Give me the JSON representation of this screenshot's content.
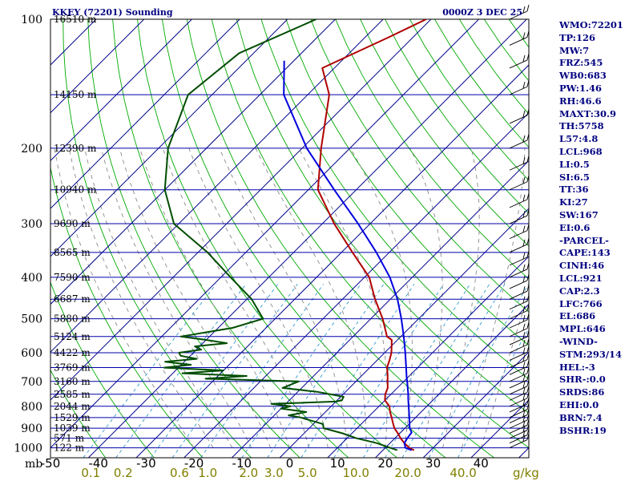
{
  "title": "KKEY (72201) Sounding",
  "datetime": "0000Z  3 DEC 25",
  "units": {
    "pressure": "mb",
    "mixing_ratio": "g/kg"
  },
  "indices": [
    "WMO:72201",
    "TP:126",
    "MW:7",
    "FRZ:545",
    "WB0:683",
    "PW:1.46",
    "RH:46.6",
    "MAXT:30.9",
    "TH:5758",
    "L57:4.8",
    "LCL:968",
    "LI:0.5",
    "SI:6.5",
    "TT:36",
    "KI:27",
    "SW:167",
    "EI:0.6",
    "-PARCEL-",
    "CAPE:143",
    "CINH:46",
    "LCL:921",
    "CAP:2.3",
    "LFC:766",
    "EL:686",
    "MPL:646",
    "-WIND-",
    "STM:293/14",
    "HEL:-3",
    "SHR-:0.0",
    "SRDS:86",
    "EHI:0.0",
    "BRN:7.4",
    "BSHR:19"
  ],
  "colors": {
    "isobar": "#0000aa",
    "isotherm": "#00008b",
    "dry_adiabat": "#00aa00",
    "moist_adiabat": "#8a8a8a",
    "mixing_ratio": "#3399cc",
    "temperature": "#b00000",
    "dewpoint": "#004d00",
    "parcel": "#0000dd",
    "text": "#000080"
  },
  "chart_data": {
    "type": "line",
    "title": "KKEY (72201) Sounding",
    "subtitle": "0000Z  3 DEC 25",
    "x_ticks": [
      -50,
      -40,
      -30,
      -20,
      -10,
      0,
      10,
      20,
      30,
      40
    ],
    "x_tick_labels": [
      "-50",
      "-40",
      "-30",
      "-20",
      "-10",
      "0",
      "10",
      "20",
      "30",
      "40"
    ],
    "x_range": [
      -50,
      50
    ],
    "y_range_mb": [
      1000,
      100
    ],
    "y_log_scale": true,
    "pressure_ticks": [
      100,
      200,
      300,
      400,
      500,
      600,
      700,
      800,
      900,
      1000
    ],
    "height_labels": [
      {
        "p": 100,
        "label": "16510 m"
      },
      {
        "p": 150,
        "label": "14150 m"
      },
      {
        "p": 200,
        "label": "12390 m"
      },
      {
        "p": 250,
        "label": "10940 m"
      },
      {
        "p": 300,
        "label": "9690 m"
      },
      {
        "p": 350,
        "label": "8565 m"
      },
      {
        "p": 400,
        "label": "7590 m"
      },
      {
        "p": 450,
        "label": "6687 m"
      },
      {
        "p": 500,
        "label": "5880 m"
      },
      {
        "p": 550,
        "label": "5124 m"
      },
      {
        "p": 600,
        "label": "4422 m"
      },
      {
        "p": 650,
        "label": "3769 m"
      },
      {
        "p": 700,
        "label": "3160 m"
      },
      {
        "p": 750,
        "label": "2585 m"
      },
      {
        "p": 800,
        "label": "2044 m"
      },
      {
        "p": 850,
        "label": "1529 m"
      },
      {
        "p": 900,
        "label": "1039 m"
      },
      {
        "p": 950,
        "label": "571 m"
      },
      {
        "p": 1000,
        "label": "122 m"
      }
    ],
    "mixing_ratio_labels": [
      {
        "w": 0.1,
        "label": "0.1"
      },
      {
        "w": 0.2,
        "label": "0.2"
      },
      {
        "w": 0.6,
        "label": "0.6"
      },
      {
        "w": 1.0,
        "label": "1.0"
      },
      {
        "w": 2.0,
        "label": "2.0"
      },
      {
        "w": 3.0,
        "label": "3.0"
      },
      {
        "w": 5.0,
        "label": "5.0"
      },
      {
        "w": 10.0,
        "label": "10.0"
      },
      {
        "w": 20.0,
        "label": "20.0"
      },
      {
        "w": 40.0,
        "label": "40.0"
      }
    ],
    "series": [
      {
        "key": "temperature",
        "p": [
          1013,
          1000,
          975,
          950,
          925,
          900,
          875,
          850,
          825,
          800,
          775,
          750,
          725,
          700,
          675,
          650,
          625,
          600,
          575,
          560,
          550,
          500,
          450,
          400,
          350,
          300,
          250,
          200,
          150,
          130,
          110,
          100
        ],
        "t": [
          26.5,
          25.0,
          23.0,
          21.2,
          19.6,
          17.8,
          16.4,
          15.0,
          13.5,
          12.2,
          10.0,
          8.8,
          8.0,
          6.6,
          5.2,
          3.6,
          2.6,
          1.4,
          -0.2,
          -1.2,
          -2.9,
          -7.5,
          -13.2,
          -19.0,
          -27.7,
          -37.5,
          -48.0,
          -56.0,
          -65.5,
          -72.5,
          -65.0,
          -61.0
        ]
      },
      {
        "key": "dewpoint",
        "p": [
          1013,
          1000,
          975,
          950,
          925,
          900,
          880,
          860,
          850,
          840,
          825,
          810,
          800,
          790,
          780,
          775,
          760,
          740,
          725,
          700,
          690,
          680,
          670,
          660,
          650,
          640,
          630,
          620,
          610,
          600,
          590,
          580,
          570,
          560,
          550,
          525,
          500,
          450,
          400,
          350,
          300,
          250,
          200,
          150,
          120,
          100
        ],
        "t": [
          23.0,
          21.0,
          17.2,
          12.0,
          8.0,
          3.0,
          2.0,
          -2.0,
          -4.0,
          -7.0,
          -4.0,
          -10.0,
          -8.5,
          -13.0,
          0.0,
          1.0,
          0.6,
          -6.0,
          -14.0,
          -12.0,
          -32.0,
          -24.0,
          -38.0,
          -30.0,
          -43.0,
          -38.0,
          -44.0,
          -38.0,
          -42.0,
          -43.0,
          -39.0,
          -41.0,
          -35.0,
          -40.0,
          -46.0,
          -37.0,
          -32.5,
          -39.0,
          -48.0,
          -58.0,
          -71.0,
          -80.0,
          -88.0,
          -95.0,
          -93.0,
          -84.0
        ]
      },
      {
        "key": "parcel",
        "p": [
          1013,
          1000,
          975,
          950,
          921,
          900,
          850,
          800,
          766,
          750,
          700,
          686,
          650,
          600,
          550,
          500,
          450,
          400,
          350,
          300,
          250,
          200,
          150,
          125
        ],
        "t": [
          26.0,
          24.2,
          23.0,
          22.6,
          22.3,
          21.0,
          18.7,
          16.2,
          14.4,
          13.6,
          10.7,
          9.8,
          7.6,
          4.3,
          0.6,
          -3.6,
          -8.5,
          -14.7,
          -22.7,
          -32.5,
          -44.6,
          -59.0,
          -75.0,
          -82.0
        ]
      }
    ]
  }
}
